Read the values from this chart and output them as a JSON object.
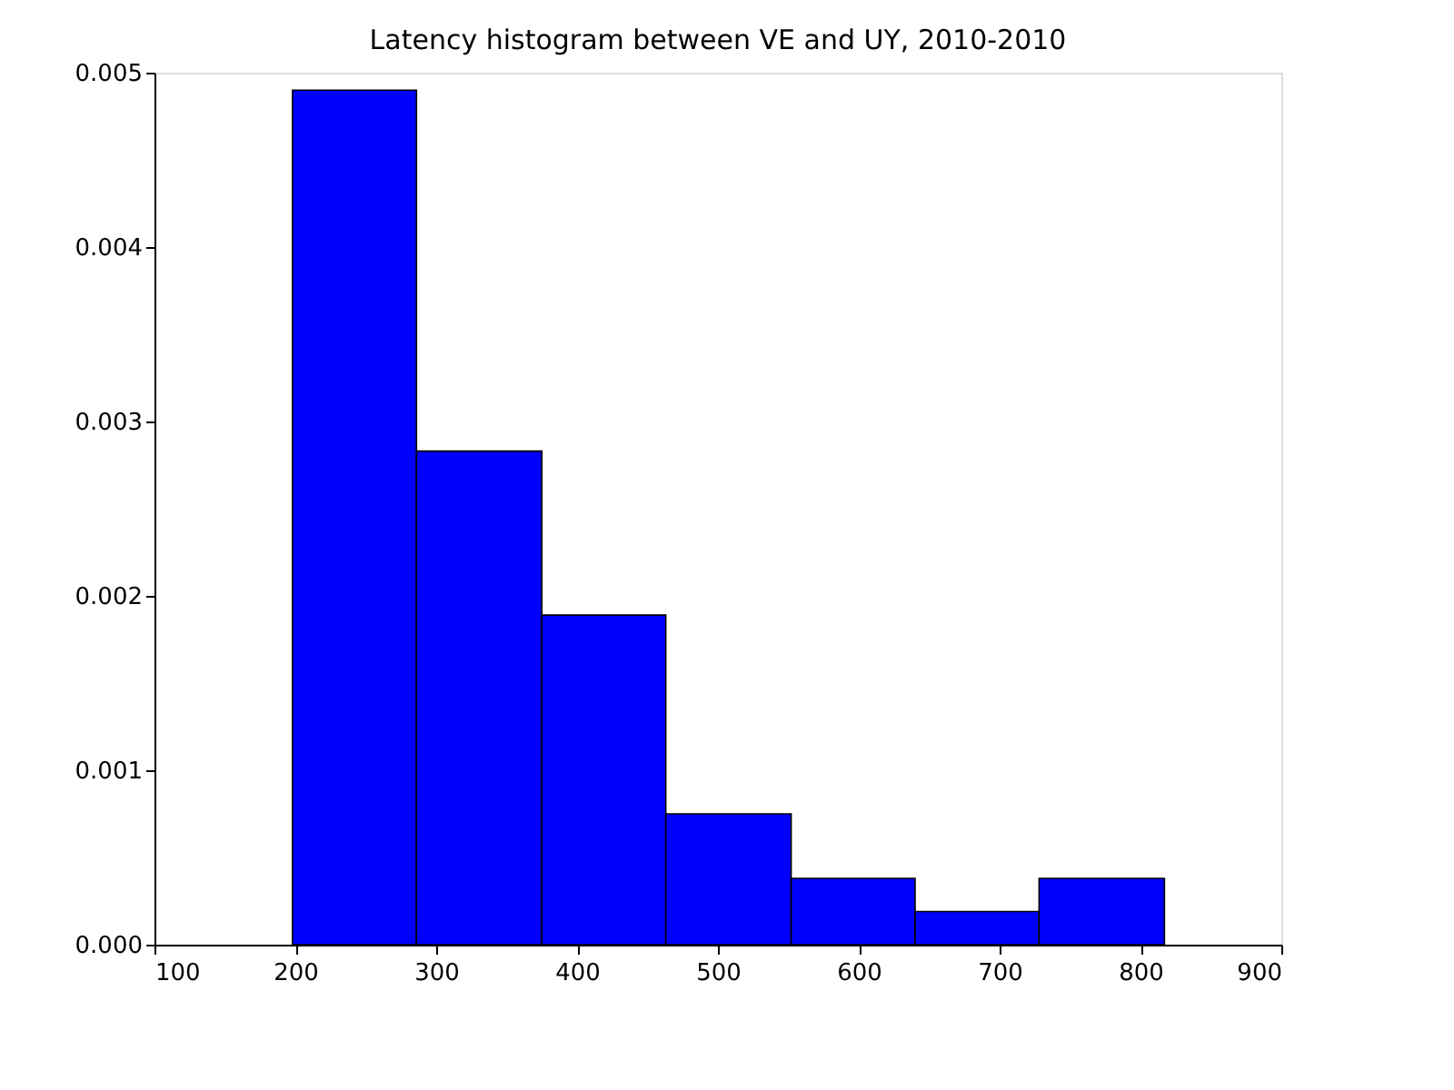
{
  "chart_data": {
    "type": "histogram",
    "title": "Latency histogram between VE and UY, 2010-2010",
    "bins": [
      198,
      286,
      375,
      463,
      552,
      640,
      728,
      817
    ],
    "values": [
      0.0049,
      0.00283,
      0.00189,
      0.00075,
      0.00038,
      0.00019,
      0.00038
    ],
    "color": "#0000ff",
    "xlim": [
      100,
      900
    ],
    "xticks": [
      100,
      200,
      300,
      400,
      500,
      600,
      700,
      800,
      900
    ],
    "ylim": [
      0,
      0.005
    ],
    "yticks": [
      {
        "value": 0,
        "label": "0.000"
      },
      {
        "value": 0.001,
        "label": "0.001"
      },
      {
        "value": 0.002,
        "label": "0.002"
      },
      {
        "value": 0.003,
        "label": "0.003"
      },
      {
        "value": 0.004,
        "label": "0.004"
      },
      {
        "value": 0.005,
        "label": "0.005"
      }
    ],
    "grid": false
  }
}
